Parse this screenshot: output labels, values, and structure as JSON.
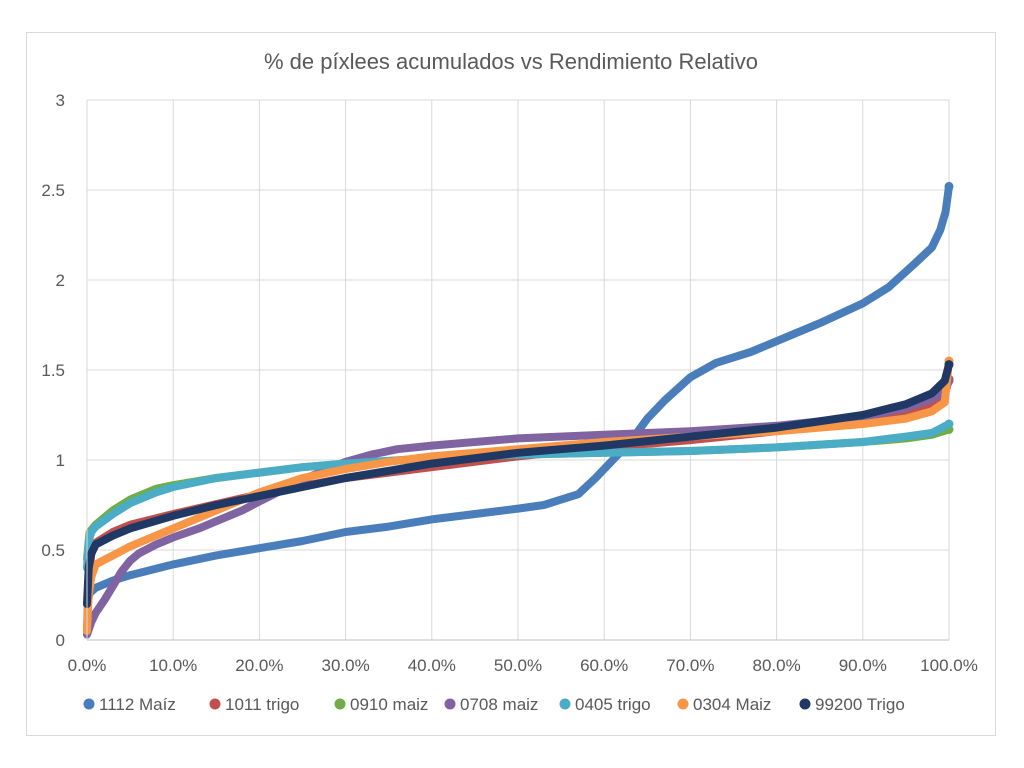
{
  "chart_data": {
    "type": "line",
    "title": "% de píxlees acumulados vs Rendimiento Relativo",
    "xlabel": "",
    "ylabel": "",
    "xlim": [
      0,
      100
    ],
    "ylim": [
      0,
      3
    ],
    "x_ticks": [
      "0.0%",
      "10.0%",
      "20.0%",
      "30.0%",
      "40.0%",
      "50.0%",
      "60.0%",
      "70.0%",
      "80.0%",
      "90.0%",
      "100.0%"
    ],
    "y_ticks": [
      "0",
      "0.5",
      "1",
      "1.5",
      "2",
      "2.5",
      "3"
    ],
    "grid": true,
    "legend_position": "bottom",
    "series": [
      {
        "name": "1112 Maíz",
        "color": "#4a7ebb",
        "points": [
          [
            0,
            0.2
          ],
          [
            0.3,
            0.26
          ],
          [
            1,
            0.29
          ],
          [
            3,
            0.33
          ],
          [
            5,
            0.36
          ],
          [
            10,
            0.42
          ],
          [
            15,
            0.47
          ],
          [
            20,
            0.51
          ],
          [
            25,
            0.55
          ],
          [
            30,
            0.6
          ],
          [
            35,
            0.63
          ],
          [
            40,
            0.67
          ],
          [
            45,
            0.7
          ],
          [
            50,
            0.73
          ],
          [
            53,
            0.75
          ],
          [
            55,
            0.78
          ],
          [
            57,
            0.81
          ],
          [
            59,
            0.9
          ],
          [
            61,
            1.0
          ],
          [
            63,
            1.1
          ],
          [
            65,
            1.23
          ],
          [
            67,
            1.33
          ],
          [
            70,
            1.46
          ],
          [
            73,
            1.54
          ],
          [
            77,
            1.6
          ],
          [
            80,
            1.66
          ],
          [
            85,
            1.76
          ],
          [
            90,
            1.87
          ],
          [
            93,
            1.96
          ],
          [
            96,
            2.09
          ],
          [
            98,
            2.18
          ],
          [
            99,
            2.28
          ],
          [
            99.6,
            2.38
          ],
          [
            100,
            2.52
          ]
        ]
      },
      {
        "name": "1011 trigo",
        "color": "#c0504d",
        "points": [
          [
            0,
            0.05
          ],
          [
            0.2,
            0.35
          ],
          [
            0.5,
            0.48
          ],
          [
            1,
            0.54
          ],
          [
            3,
            0.6
          ],
          [
            5,
            0.64
          ],
          [
            10,
            0.7
          ],
          [
            20,
            0.81
          ],
          [
            30,
            0.9
          ],
          [
            40,
            0.96
          ],
          [
            50,
            1.02
          ],
          [
            60,
            1.07
          ],
          [
            70,
            1.11
          ],
          [
            80,
            1.16
          ],
          [
            90,
            1.22
          ],
          [
            95,
            1.27
          ],
          [
            98,
            1.31
          ],
          [
            99.5,
            1.36
          ],
          [
            100,
            1.45
          ]
        ]
      },
      {
        "name": "0910 maiz",
        "color": "#70ad47",
        "points": [
          [
            0,
            0.45
          ],
          [
            0.3,
            0.6
          ],
          [
            1,
            0.64
          ],
          [
            3,
            0.72
          ],
          [
            5,
            0.78
          ],
          [
            8,
            0.84
          ],
          [
            10,
            0.86
          ],
          [
            15,
            0.9
          ],
          [
            20,
            0.93
          ],
          [
            25,
            0.96
          ],
          [
            30,
            0.98
          ],
          [
            40,
            1.01
          ],
          [
            50,
            1.03
          ],
          [
            60,
            1.04
          ],
          [
            70,
            1.05
          ],
          [
            80,
            1.07
          ],
          [
            90,
            1.1
          ],
          [
            95,
            1.12
          ],
          [
            98,
            1.14
          ],
          [
            100,
            1.17
          ]
        ]
      },
      {
        "name": "0708 maiz",
        "color": "#8064a2",
        "points": [
          [
            0,
            0.03
          ],
          [
            0.5,
            0.1
          ],
          [
            1,
            0.15
          ],
          [
            2,
            0.22
          ],
          [
            3,
            0.3
          ],
          [
            4,
            0.38
          ],
          [
            5,
            0.44
          ],
          [
            6,
            0.48
          ],
          [
            8,
            0.53
          ],
          [
            10,
            0.57
          ],
          [
            13,
            0.62
          ],
          [
            15,
            0.66
          ],
          [
            18,
            0.72
          ],
          [
            20,
            0.77
          ],
          [
            25,
            0.89
          ],
          [
            28,
            0.95
          ],
          [
            30,
            0.99
          ],
          [
            33,
            1.03
          ],
          [
            36,
            1.06
          ],
          [
            40,
            1.08
          ],
          [
            45,
            1.1
          ],
          [
            50,
            1.12
          ],
          [
            60,
            1.14
          ],
          [
            70,
            1.16
          ],
          [
            80,
            1.19
          ],
          [
            90,
            1.24
          ],
          [
            95,
            1.29
          ],
          [
            98,
            1.34
          ],
          [
            99.5,
            1.38
          ],
          [
            100,
            1.44
          ]
        ]
      },
      {
        "name": "0405 trigo",
        "color": "#4bacc6",
        "points": [
          [
            0,
            0.4
          ],
          [
            0.2,
            0.55
          ],
          [
            0.5,
            0.6
          ],
          [
            1,
            0.63
          ],
          [
            3,
            0.7
          ],
          [
            5,
            0.76
          ],
          [
            8,
            0.82
          ],
          [
            10,
            0.85
          ],
          [
            15,
            0.9
          ],
          [
            20,
            0.93
          ],
          [
            25,
            0.96
          ],
          [
            30,
            0.98
          ],
          [
            40,
            1.01
          ],
          [
            50,
            1.03
          ],
          [
            60,
            1.04
          ],
          [
            70,
            1.05
          ],
          [
            80,
            1.07
          ],
          [
            90,
            1.1
          ],
          [
            95,
            1.13
          ],
          [
            98,
            1.15
          ],
          [
            100,
            1.2
          ]
        ]
      },
      {
        "name": "0304 Maiz",
        "color": "#f79646",
        "points": [
          [
            0,
            0.05
          ],
          [
            0.2,
            0.25
          ],
          [
            0.5,
            0.35
          ],
          [
            1,
            0.42
          ],
          [
            3,
            0.47
          ],
          [
            5,
            0.52
          ],
          [
            8,
            0.58
          ],
          [
            10,
            0.62
          ],
          [
            15,
            0.72
          ],
          [
            20,
            0.82
          ],
          [
            25,
            0.9
          ],
          [
            30,
            0.95
          ],
          [
            35,
            0.99
          ],
          [
            40,
            1.02
          ],
          [
            50,
            1.06
          ],
          [
            60,
            1.1
          ],
          [
            70,
            1.13
          ],
          [
            80,
            1.16
          ],
          [
            90,
            1.2
          ],
          [
            95,
            1.23
          ],
          [
            98,
            1.27
          ],
          [
            99.5,
            1.32
          ],
          [
            100,
            1.55
          ]
        ]
      },
      {
        "name": "99200 Trigo",
        "color": "#1f3864",
        "points": [
          [
            0,
            0.2
          ],
          [
            0.2,
            0.4
          ],
          [
            0.5,
            0.48
          ],
          [
            1,
            0.53
          ],
          [
            3,
            0.58
          ],
          [
            5,
            0.62
          ],
          [
            10,
            0.69
          ],
          [
            15,
            0.75
          ],
          [
            20,
            0.8
          ],
          [
            25,
            0.85
          ],
          [
            30,
            0.9
          ],
          [
            35,
            0.94
          ],
          [
            40,
            0.98
          ],
          [
            45,
            1.01
          ],
          [
            50,
            1.04
          ],
          [
            55,
            1.06
          ],
          [
            60,
            1.08
          ],
          [
            70,
            1.13
          ],
          [
            80,
            1.18
          ],
          [
            90,
            1.25
          ],
          [
            95,
            1.31
          ],
          [
            98,
            1.37
          ],
          [
            99.5,
            1.44
          ],
          [
            100,
            1.53
          ]
        ]
      }
    ]
  }
}
